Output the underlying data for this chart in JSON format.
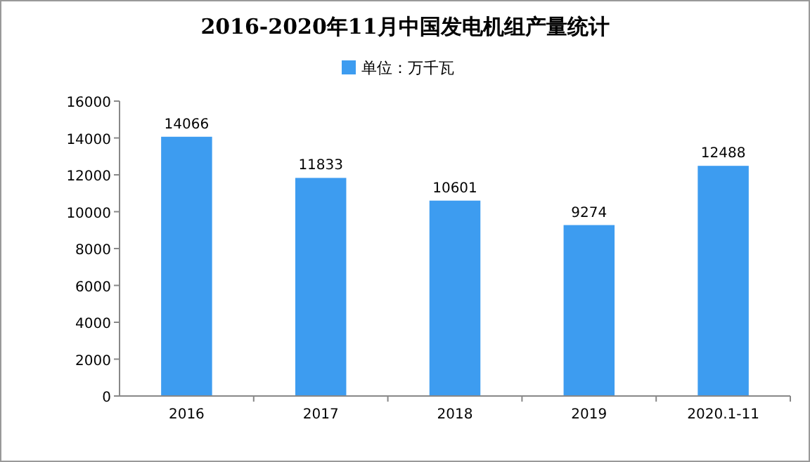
{
  "chart_data": {
    "type": "bar",
    "title": "2016-2020年11月中国发电机组产量统计",
    "categories": [
      "2016",
      "2017",
      "2018",
      "2019",
      "2020.1-11"
    ],
    "series": [
      {
        "name": "单位：万千瓦",
        "color": "#3d9cf0",
        "values": [
          14066,
          11833,
          10601,
          9274,
          12488
        ]
      }
    ],
    "ylim": [
      0,
      16000
    ],
    "yticks": [
      0,
      2000,
      4000,
      6000,
      8000,
      10000,
      12000,
      14000,
      16000
    ],
    "data_labels": true,
    "legend": "top"
  }
}
